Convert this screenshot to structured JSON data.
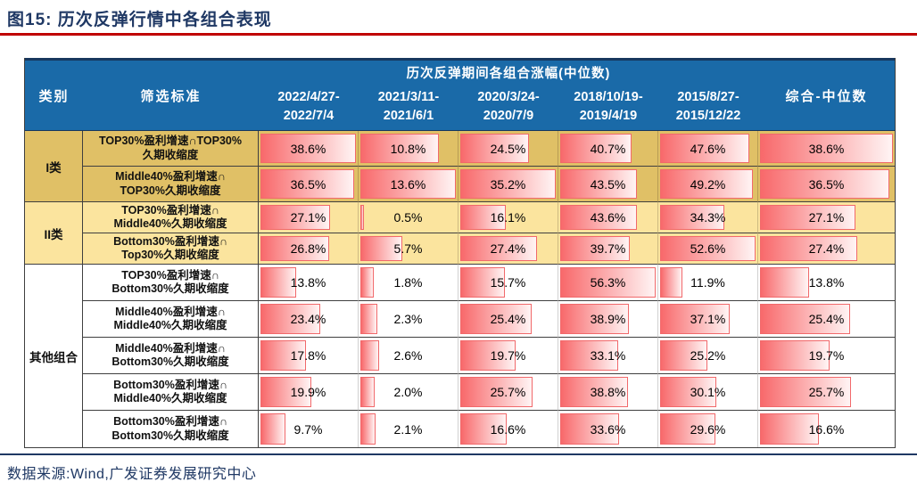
{
  "title": "图15:  历次反弹行情中各组合表现",
  "footer": {
    "source": "数据来源:Wind,广发证券发展研究中心"
  },
  "colors": {
    "navy": "#1F3864",
    "rule-red": "#C00000",
    "header-blue": "#1A6AA8",
    "header-top": "#17375E",
    "tier1": "#E0C066",
    "tier2": "#FBE49E",
    "bar-start": "#F8696B",
    "bar-end": "#FFF4F4",
    "bar-border": "#F1696B",
    "grid-dark": "#3F3F3F",
    "grid-light": "rgba(0,0,0,0.18)"
  },
  "table": {
    "header": {
      "col_category": "类别",
      "col_criteria": "筛选标准",
      "span_label": "历次反弹期间各组合涨幅(中位数)",
      "periods": [
        {
          "line1": "2022/4/27-",
          "line2": "2022/7/4"
        },
        {
          "line1": "2021/3/11-",
          "line2": "2021/6/1"
        },
        {
          "line1": "2020/3/24-",
          "line2": "2020/7/9"
        },
        {
          "line1": "2018/10/19-",
          "line2": "2019/4/19"
        },
        {
          "line1": "2015/8/27-",
          "line2": "2015/12/22"
        }
      ],
      "col_composite": "综合-中位数"
    },
    "categories": [
      {
        "label": "I类"
      },
      {
        "label": "II类"
      },
      {
        "label": "其他组合"
      }
    ],
    "rows": [
      {
        "criteria": {
          "line1": "TOP30%盈利增速∩TOP30%",
          "line2": "久期收缩度"
        },
        "values": [
          "38.6%",
          "10.8%",
          "24.5%",
          "40.7%",
          "47.6%",
          "38.6%"
        ]
      },
      {
        "criteria": {
          "line1": "Middle40%盈利增速∩",
          "line2": "TOP30%久期收缩度"
        },
        "values": [
          "36.5%",
          "13.6%",
          "35.2%",
          "43.5%",
          "49.2%",
          "36.5%"
        ]
      },
      {
        "criteria": {
          "line1": "TOP30%盈利增速∩",
          "line2": "Middle40%久期收缩度"
        },
        "values": [
          "27.1%",
          "0.5%",
          "16.1%",
          "43.6%",
          "34.3%",
          "27.1%"
        ]
      },
      {
        "criteria": {
          "line1": "Bottom30%盈利增速∩",
          "line2": "Top30%久期收缩度"
        },
        "values": [
          "26.8%",
          "5.7%",
          "27.4%",
          "39.7%",
          "52.6%",
          "27.4%"
        ]
      },
      {
        "criteria": {
          "line1": "TOP30%盈利增速∩",
          "line2": "Bottom30%久期收缩度"
        },
        "values": [
          "13.8%",
          "1.8%",
          "15.7%",
          "56.3%",
          "11.9%",
          "13.8%"
        ]
      },
      {
        "criteria": {
          "line1": "Middle40%盈利增速∩",
          "line2": "Middle40%久期收缩度"
        },
        "values": [
          "23.4%",
          "2.3%",
          "25.4%",
          "38.9%",
          "37.1%",
          "25.4%"
        ]
      },
      {
        "criteria": {
          "line1": "Middle40%盈利增速∩",
          "line2": "Bottom30%久期收缩度"
        },
        "values": [
          "17.8%",
          "2.6%",
          "19.7%",
          "33.1%",
          "25.2%",
          "19.7%"
        ]
      },
      {
        "criteria": {
          "line1": "Bottom30%盈利增速∩",
          "line2": "Middle40%久期收缩度"
        },
        "values": [
          "19.9%",
          "2.0%",
          "25.7%",
          "38.8%",
          "30.1%",
          "25.7%"
        ]
      },
      {
        "criteria": {
          "line1": "Bottom30%盈利增速∩",
          "line2": "Bottom30%久期收缩度"
        },
        "values": [
          "9.7%",
          "2.1%",
          "16.6%",
          "33.6%",
          "29.6%",
          "16.6%"
        ]
      }
    ]
  },
  "chart_data": {
    "type": "table",
    "title": "图15: 历次反弹行情中各组合表现",
    "subtitle": "历次反弹期间各组合涨幅(中位数)",
    "unit": "%",
    "columns": [
      "类别",
      "筛选标准",
      "2022/4/27-2022/7/4",
      "2021/3/11-2021/6/1",
      "2020/3/24-2020/7/9",
      "2018/10/19-2019/4/19",
      "2015/8/27-2015/12/22",
      "综合-中位数"
    ],
    "rows": [
      {
        "category": "I类",
        "criteria": "TOP30%盈利增速∩TOP30%久期收缩度",
        "values": [
          38.6,
          10.8,
          24.5,
          40.7,
          47.6,
          38.6
        ]
      },
      {
        "category": "I类",
        "criteria": "Middle40%盈利增速∩TOP30%久期收缩度",
        "values": [
          36.5,
          13.6,
          35.2,
          43.5,
          49.2,
          36.5
        ]
      },
      {
        "category": "II类",
        "criteria": "TOP30%盈利增速∩Middle40%久期收缩度",
        "values": [
          27.1,
          0.5,
          16.1,
          43.6,
          34.3,
          27.1
        ]
      },
      {
        "category": "II类",
        "criteria": "Bottom30%盈利增速∩Top30%久期收缩度",
        "values": [
          26.8,
          5.7,
          27.4,
          39.7,
          52.6,
          27.4
        ]
      },
      {
        "category": "其他组合",
        "criteria": "TOP30%盈利增速∩Bottom30%久期收缩度",
        "values": [
          13.8,
          1.8,
          15.7,
          56.3,
          11.9,
          13.8
        ]
      },
      {
        "category": "其他组合",
        "criteria": "Middle40%盈利增速∩Middle40%久期收缩度",
        "values": [
          23.4,
          2.3,
          25.4,
          38.9,
          37.1,
          25.4
        ]
      },
      {
        "category": "其他组合",
        "criteria": "Middle40%盈利增速∩Bottom30%久期收缩度",
        "values": [
          17.8,
          2.6,
          19.7,
          33.1,
          25.2,
          19.7
        ]
      },
      {
        "category": "其他组合",
        "criteria": "Bottom30%盈利增速∩Middle40%久期收缩度",
        "values": [
          19.9,
          2.0,
          25.7,
          38.8,
          30.1,
          25.7
        ]
      },
      {
        "category": "其他组合",
        "criteria": "Bottom30%盈利增速∩Bottom30%久期收缩度",
        "values": [
          9.7,
          2.1,
          16.6,
          33.6,
          29.6,
          16.6
        ]
      }
    ],
    "layout_hints": {
      "data_bars": "red gradient, width = value / column max",
      "group_row_fills": [
        "gold",
        "light-yellow",
        "white"
      ]
    }
  }
}
